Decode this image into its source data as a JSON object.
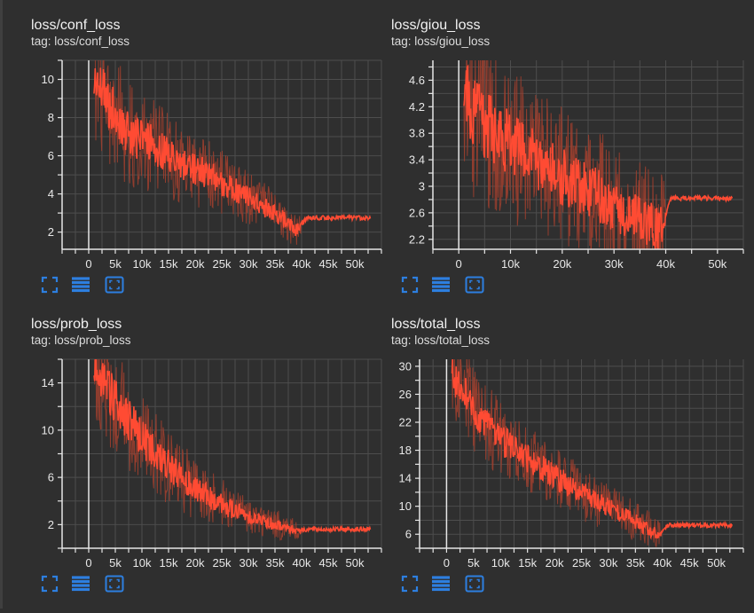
{
  "theme": {
    "background": "#2f2f2f",
    "grid": "#4d4d4d",
    "axis": "#e6e6e6",
    "series": "#ff4b33",
    "series_raw": "#a2402e",
    "icon": "#2d7fe0"
  },
  "icons": [
    "fit-domain-icon",
    "toggle-log-icon",
    "expand-chart-icon"
  ],
  "chart_data": [
    {
      "title": "loss/conf_loss",
      "subtitle": "tag: loss/conf_loss",
      "type": "line",
      "xlim": [
        -5000,
        55000
      ],
      "ylim": [
        1.1,
        11
      ],
      "x_ticks": [
        0,
        5000,
        10000,
        15000,
        20000,
        25000,
        30000,
        35000,
        40000,
        45000,
        50000
      ],
      "x_tick_labels": [
        "0",
        "5k",
        "10k",
        "15k",
        "20k",
        "25k",
        "30k",
        "35k",
        "40k",
        "45k",
        "50k"
      ],
      "y_ticks": [
        2,
        4,
        6,
        8,
        10
      ],
      "y_tick_labels": [
        "2",
        "4",
        "6",
        "8",
        "10"
      ],
      "series": [
        {
          "x": [
            1000,
            3000,
            5000,
            7000,
            9000,
            11000,
            13000,
            15000,
            17000,
            19000,
            21000,
            23000,
            25000,
            27000,
            29000,
            31000,
            33000,
            35000,
            37000,
            39000,
            41000,
            43000,
            45000,
            47000,
            49000,
            51000,
            53000
          ],
          "y": [
            10.0,
            9.2,
            8.1,
            7.4,
            6.9,
            6.7,
            6.4,
            6.0,
            5.7,
            5.4,
            5.2,
            5.0,
            4.6,
            4.3,
            4.0,
            3.7,
            3.3,
            3.0,
            2.6,
            2.1,
            2.75,
            2.75,
            2.75,
            2.75,
            2.75,
            2.75,
            2.75
          ],
          "spread": [
            1.6,
            1.5,
            1.4,
            1.3,
            1.2,
            1.2,
            1.1,
            1.0,
            1.0,
            0.9,
            0.9,
            0.8,
            0.8,
            0.7,
            0.7,
            0.6,
            0.6,
            0.5,
            0.5,
            0.4,
            0.0,
            0.0,
            0.0,
            0.0,
            0.0,
            0.0,
            0.0
          ]
        }
      ]
    },
    {
      "title": "loss/giou_loss",
      "subtitle": "tag: loss/giou_loss",
      "type": "line",
      "xlim": [
        -5000,
        55000
      ],
      "ylim": [
        2.05,
        4.9
      ],
      "x_ticks": [
        0,
        10000,
        20000,
        30000,
        40000,
        50000
      ],
      "x_tick_labels": [
        "0",
        "10k",
        "20k",
        "30k",
        "40k",
        "50k"
      ],
      "y_ticks": [
        2.2,
        2.6,
        3.0,
        3.4,
        3.8,
        4.2,
        4.6
      ],
      "y_tick_labels": [
        "2.2",
        "2.6",
        "3",
        "3.4",
        "3.8",
        "4.2",
        "4.6"
      ],
      "series": [
        {
          "x": [
            1000,
            3000,
            5000,
            7000,
            9000,
            11000,
            13000,
            15000,
            17000,
            19000,
            21000,
            23000,
            25000,
            27000,
            29000,
            31000,
            33000,
            35000,
            37000,
            39000,
            41000,
            43000,
            45000,
            47000,
            49000,
            51000,
            53000
          ],
          "y": [
            4.4,
            4.1,
            3.95,
            3.8,
            3.7,
            3.6,
            3.5,
            3.4,
            3.3,
            3.2,
            3.1,
            3.0,
            2.95,
            2.85,
            2.75,
            2.65,
            2.6,
            2.5,
            2.45,
            2.35,
            2.82,
            2.82,
            2.82,
            2.82,
            2.82,
            2.82,
            2.82
          ],
          "spread": [
            0.6,
            0.6,
            0.6,
            0.55,
            0.55,
            0.55,
            0.5,
            0.5,
            0.5,
            0.5,
            0.5,
            0.45,
            0.45,
            0.45,
            0.45,
            0.45,
            0.4,
            0.4,
            0.4,
            0.4,
            0.0,
            0.0,
            0.0,
            0.0,
            0.0,
            0.0,
            0.0
          ]
        }
      ]
    },
    {
      "title": "loss/prob_loss",
      "subtitle": "tag: loss/prob_loss",
      "type": "line",
      "xlim": [
        -5000,
        55000
      ],
      "ylim": [
        0,
        16
      ],
      "x_ticks": [
        0,
        5000,
        10000,
        15000,
        20000,
        25000,
        30000,
        35000,
        40000,
        45000,
        50000
      ],
      "x_tick_labels": [
        "0",
        "5k",
        "10k",
        "15k",
        "20k",
        "25k",
        "30k",
        "35k",
        "40k",
        "45k",
        "50k"
      ],
      "y_ticks": [
        2,
        6,
        10,
        14
      ],
      "y_tick_labels": [
        "2",
        "6",
        "10",
        "14"
      ],
      "series": [
        {
          "x": [
            1000,
            3000,
            5000,
            7000,
            9000,
            11000,
            13000,
            15000,
            17000,
            19000,
            21000,
            23000,
            25000,
            27000,
            29000,
            31000,
            33000,
            35000,
            37000,
            39000,
            41000,
            43000,
            45000,
            47000,
            49000,
            51000,
            53000
          ],
          "y": [
            15.0,
            13.8,
            12.5,
            11.2,
            10.0,
            8.9,
            7.9,
            7.0,
            6.2,
            5.5,
            4.8,
            4.2,
            3.7,
            3.3,
            2.9,
            2.6,
            2.3,
            2.0,
            1.8,
            1.5,
            1.6,
            1.6,
            1.6,
            1.6,
            1.6,
            1.6,
            1.6
          ],
          "spread": [
            2.4,
            2.3,
            2.2,
            2.0,
            1.9,
            1.8,
            1.6,
            1.5,
            1.4,
            1.3,
            1.2,
            1.1,
            1.0,
            0.9,
            0.8,
            0.7,
            0.6,
            0.6,
            0.5,
            0.4,
            0.0,
            0.0,
            0.0,
            0.0,
            0.0,
            0.0,
            0.0
          ]
        }
      ]
    },
    {
      "title": "loss/total_loss",
      "subtitle": "tag: loss/total_loss",
      "type": "line",
      "xlim": [
        -5000,
        55000
      ],
      "ylim": [
        4,
        31
      ],
      "x_ticks": [
        0,
        5000,
        10000,
        15000,
        20000,
        25000,
        30000,
        35000,
        40000,
        45000,
        50000
      ],
      "x_tick_labels": [
        "0",
        "5k",
        "10k",
        "15k",
        "20k",
        "25k",
        "30k",
        "35k",
        "40k",
        "45k",
        "50k"
      ],
      "y_ticks": [
        6,
        10,
        14,
        18,
        22,
        26,
        30
      ],
      "y_tick_labels": [
        "6",
        "10",
        "14",
        "18",
        "22",
        "26",
        "30"
      ],
      "series": [
        {
          "x": [
            1000,
            3000,
            5000,
            7000,
            9000,
            11000,
            13000,
            15000,
            17000,
            19000,
            21000,
            23000,
            25000,
            27000,
            29000,
            31000,
            33000,
            35000,
            37000,
            39000,
            41000,
            43000,
            45000,
            47000,
            49000,
            51000,
            53000
          ],
          "y": [
            29.0,
            26.5,
            24.0,
            22.0,
            20.5,
            19.0,
            18.0,
            16.8,
            15.8,
            14.8,
            13.8,
            12.9,
            12.0,
            11.0,
            10.2,
            9.4,
            8.6,
            7.8,
            7.0,
            6.0,
            7.3,
            7.3,
            7.3,
            7.3,
            7.3,
            7.3,
            7.3
          ],
          "spread": [
            3.0,
            2.9,
            2.8,
            2.7,
            2.6,
            2.5,
            2.4,
            2.3,
            2.2,
            2.1,
            2.0,
            1.9,
            1.8,
            1.7,
            1.6,
            1.5,
            1.4,
            1.3,
            1.2,
            1.0,
            0.0,
            0.0,
            0.0,
            0.0,
            0.0,
            0.0,
            0.0
          ]
        }
      ]
    }
  ]
}
